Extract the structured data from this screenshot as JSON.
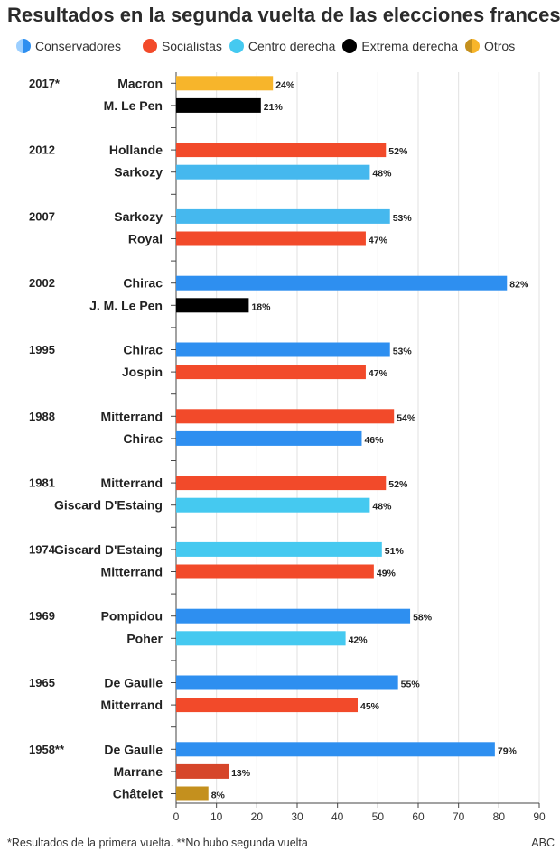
{
  "title": "Resultados en la segunda vuelta de las elecciones francesas",
  "legend": [
    {
      "label": "Conservadores",
      "color": "#2e8ff0",
      "color2": "#9ccfff"
    },
    {
      "label": "Socialistas",
      "color": "#f24a2a"
    },
    {
      "label": "Centro derecha",
      "color": "#45c9f0"
    },
    {
      "label": "Extrema derecha",
      "color": "#000000"
    },
    {
      "label": "Otros",
      "color": "#f7b52b",
      "color2": "#c4901e"
    }
  ],
  "footnote": "*Resultados de la primera vuelta. **No hubo segunda vuelta",
  "source": "ABC",
  "chart_data": {
    "type": "bar",
    "orientation": "horizontal",
    "value_suffix": "%",
    "xlim": [
      0,
      90
    ],
    "xticks": [
      0,
      10,
      20,
      30,
      40,
      50,
      60,
      70,
      80,
      90
    ],
    "grid": true,
    "groups": [
      {
        "year": "2017*",
        "entries": [
          {
            "candidate": "Macron",
            "value": 24,
            "color": "#f7b52b"
          },
          {
            "candidate": "M. Le Pen",
            "value": 21,
            "color": "#000000"
          }
        ]
      },
      {
        "year": "2012",
        "entries": [
          {
            "candidate": "Hollande",
            "value": 52,
            "color": "#f24a2a"
          },
          {
            "candidate": "Sarkozy",
            "value": 48,
            "color": "#45b8ee"
          }
        ]
      },
      {
        "year": "2007",
        "entries": [
          {
            "candidate": "Sarkozy",
            "value": 53,
            "color": "#45b8ee"
          },
          {
            "candidate": "Royal",
            "value": 47,
            "color": "#f24a2a"
          }
        ]
      },
      {
        "year": "2002",
        "entries": [
          {
            "candidate": "Chirac",
            "value": 82,
            "color": "#2e8ff0"
          },
          {
            "candidate": "J. M. Le Pen",
            "value": 18,
            "color": "#000000"
          }
        ]
      },
      {
        "year": "1995",
        "entries": [
          {
            "candidate": "Chirac",
            "value": 53,
            "color": "#2e8ff0"
          },
          {
            "candidate": "Jospin",
            "value": 47,
            "color": "#f24a2a"
          }
        ]
      },
      {
        "year": "1988",
        "entries": [
          {
            "candidate": "Mitterrand",
            "value": 54,
            "color": "#f24a2a"
          },
          {
            "candidate": "Chirac",
            "value": 46,
            "color": "#2e8ff0"
          }
        ]
      },
      {
        "year": "1981",
        "entries": [
          {
            "candidate": "Mitterrand",
            "value": 52,
            "color": "#f24a2a"
          },
          {
            "candidate": "Giscard D'Estaing",
            "value": 48,
            "color": "#45c9f0"
          }
        ]
      },
      {
        "year": "1974",
        "entries": [
          {
            "candidate": "Giscard D'Estaing",
            "value": 51,
            "color": "#45c9f0"
          },
          {
            "candidate": "Mitterrand",
            "value": 49,
            "color": "#f24a2a"
          }
        ]
      },
      {
        "year": "1969",
        "entries": [
          {
            "candidate": "Pompidou",
            "value": 58,
            "color": "#2e8ff0"
          },
          {
            "candidate": "Poher",
            "value": 42,
            "color": "#45c9f0"
          }
        ]
      },
      {
        "year": "1965",
        "entries": [
          {
            "candidate": "De Gaulle",
            "value": 55,
            "color": "#2e8ff0"
          },
          {
            "candidate": "Mitterrand",
            "value": 45,
            "color": "#f24a2a"
          }
        ]
      },
      {
        "year": "1958**",
        "entries": [
          {
            "candidate": "De Gaulle",
            "value": 79,
            "color": "#2e8ff0"
          },
          {
            "candidate": "Marrane",
            "value": 13,
            "color": "#d6462a"
          },
          {
            "candidate": "Châtelet",
            "value": 8,
            "color": "#c4901e"
          }
        ]
      }
    ]
  }
}
